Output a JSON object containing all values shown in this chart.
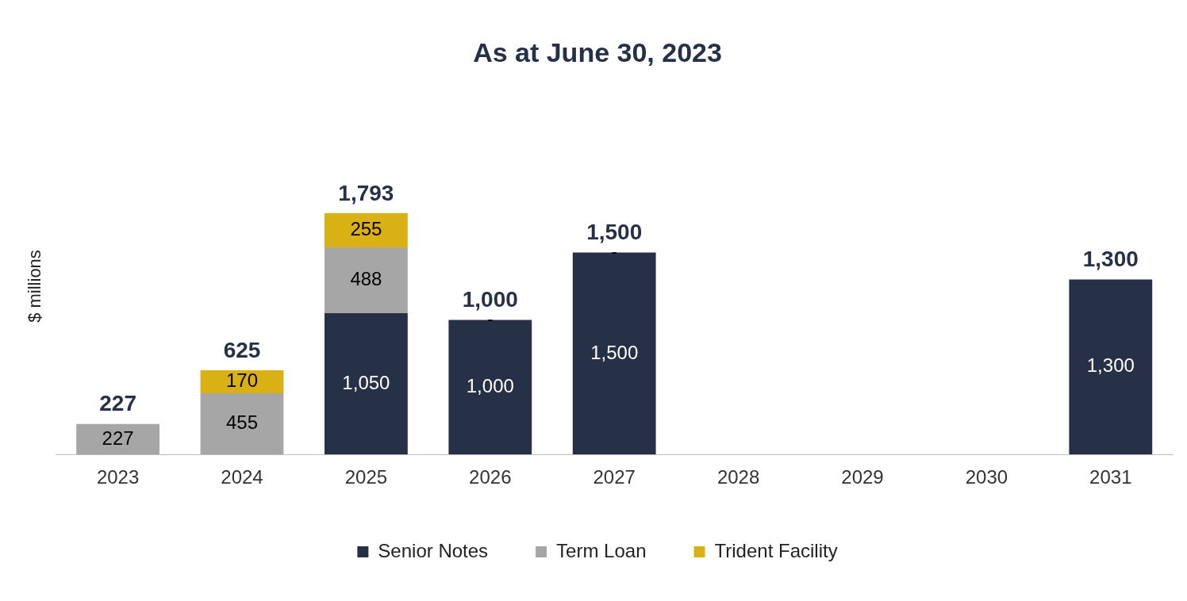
{
  "chart_data": {
    "type": "bar",
    "title": "As at June 30, 2023",
    "ylabel": "$ millions",
    "stacked": true,
    "tick_labels": "x",
    "legend": "bottom",
    "grid": false,
    "categories": [
      "2023",
      "2024",
      "2025",
      "2026",
      "2027",
      "2028",
      "2029",
      "2030",
      "2031"
    ],
    "series": [
      {
        "name": "Senior Notes",
        "color": "#263046",
        "values": [
          0,
          0,
          1050,
          1000,
          1500,
          0,
          0,
          0,
          1300
        ],
        "value_labels": [
          null,
          null,
          "1,050",
          "1,000",
          "1,500",
          null,
          null,
          null,
          "1,300"
        ]
      },
      {
        "name": "Term Loan",
        "color": "#a6a6a6",
        "values": [
          227,
          455,
          488,
          0,
          0,
          0,
          0,
          0,
          0
        ],
        "value_labels": [
          "227",
          "455",
          "488",
          null,
          null,
          null,
          null,
          null,
          null
        ]
      },
      {
        "name": "Trident Facility",
        "color": "#d9b114",
        "values": [
          0,
          170,
          255,
          0,
          0,
          0,
          0,
          0,
          0
        ],
        "value_labels": [
          null,
          "170",
          "255",
          "-",
          "-",
          null,
          null,
          null,
          null
        ]
      }
    ],
    "totals": [
      "227",
      "625",
      "1,793",
      "1,000",
      "1,500",
      null,
      null,
      null,
      "1,300"
    ]
  }
}
